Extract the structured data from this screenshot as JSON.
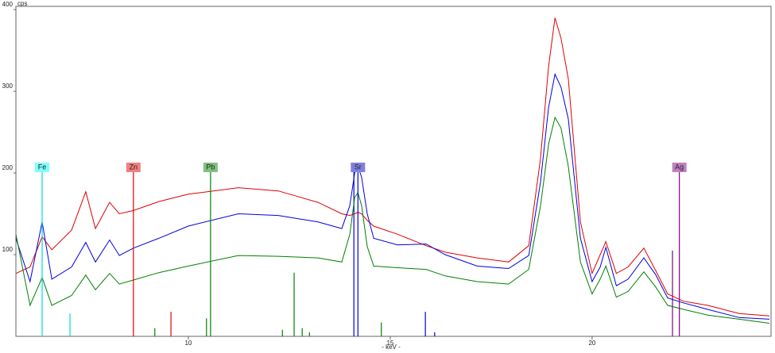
{
  "chart_data": {
    "type": "line",
    "y_label": "cps",
    "x_label": "- keV -",
    "xlim": [
      5.73,
      24.43
    ],
    "ylim": [
      0,
      404
    ],
    "xticks": [
      10,
      15,
      20
    ],
    "yticks": [
      100,
      200,
      300,
      400
    ],
    "x": [
      5.73,
      6.08,
      6.38,
      6.62,
      7.11,
      7.46,
      7.7,
      8.05,
      8.29,
      8.64,
      9.27,
      10.0,
      11.24,
      12.23,
      13.21,
      13.8,
      14.0,
      14.12,
      14.2,
      14.29,
      14.43,
      14.59,
      15.18,
      15.89,
      16.36,
      17.15,
      17.93,
      18.43,
      18.72,
      18.92,
      19.08,
      19.23,
      19.41,
      19.71,
      20.0,
      20.2,
      20.34,
      20.6,
      20.89,
      21.28,
      21.58,
      21.87,
      22.26,
      22.86,
      23.64,
      24.39
    ],
    "series": [
      {
        "color": "#e00000",
        "values": [
          77,
          85,
          122,
          106,
          130,
          177,
          132,
          164,
          150,
          154,
          165,
          174,
          182,
          178,
          164,
          150,
          148,
          150,
          152,
          150,
          142,
          135,
          125,
          111,
          103,
          96,
          91,
          111,
          217,
          330,
          390,
          365,
          315,
          140,
          77,
          100,
          116,
          77,
          85,
          108,
          80,
          52,
          43,
          38,
          28,
          25
        ]
      },
      {
        "color": "#0000e0",
        "values": [
          120,
          67,
          140,
          70,
          85,
          115,
          91,
          118,
          99,
          108,
          120,
          135,
          150,
          148,
          140,
          132,
          160,
          200,
          208,
          195,
          150,
          120,
          112,
          113,
          100,
          86,
          83,
          99,
          188,
          280,
          321,
          305,
          266,
          120,
          67,
          85,
          109,
          62,
          70,
          96,
          75,
          47,
          41,
          33,
          23,
          21
        ]
      },
      {
        "color": "#008000",
        "values": [
          125,
          38,
          72,
          38,
          50,
          75,
          57,
          77,
          64,
          69,
          78,
          86,
          99,
          98,
          96,
          91,
          125,
          170,
          176,
          160,
          110,
          86,
          84,
          82,
          74,
          67,
          64,
          82,
          159,
          235,
          268,
          255,
          208,
          91,
          52,
          70,
          86,
          48,
          55,
          79,
          60,
          38,
          33,
          26,
          21,
          16
        ]
      }
    ],
    "markers": [
      {
        "label": "Fe",
        "x": 6.38,
        "color": "#00d8e8",
        "label_bg": "#80ffff",
        "lines": [
          {
            "x": 7.07,
            "height": 28
          }
        ]
      },
      {
        "label": "Zn",
        "x": 8.64,
        "color": "#e00000",
        "label_bg": "#f08080",
        "lines": [
          {
            "x": 9.57,
            "height": 30
          }
        ]
      },
      {
        "label": "Pb",
        "x": 10.55,
        "color": "#008000",
        "label_bg": "#80c080",
        "lines": [
          {
            "x": 9.17,
            "height": 10
          },
          {
            "x": 10.45,
            "height": 22
          },
          {
            "x": 12.33,
            "height": 8
          },
          {
            "x": 12.62,
            "height": 78
          },
          {
            "x": 12.82,
            "height": 10
          },
          {
            "x": 13.0,
            "height": 5
          },
          {
            "x": 14.78,
            "height": 17
          }
        ]
      },
      {
        "label": "Sr",
        "x": 14.2,
        "color": "#0000e0",
        "label_bg": "#8080e0",
        "lines": [
          {
            "x": 14.1,
            "height": 206
          },
          {
            "x": 15.87,
            "height": 30
          },
          {
            "x": 16.1,
            "height": 5
          }
        ]
      },
      {
        "label": "Ag",
        "x": 22.16,
        "color": "#800080",
        "label_bg": "#c080c0",
        "lines": [
          {
            "x": 21.99,
            "height": 105
          }
        ]
      }
    ]
  }
}
